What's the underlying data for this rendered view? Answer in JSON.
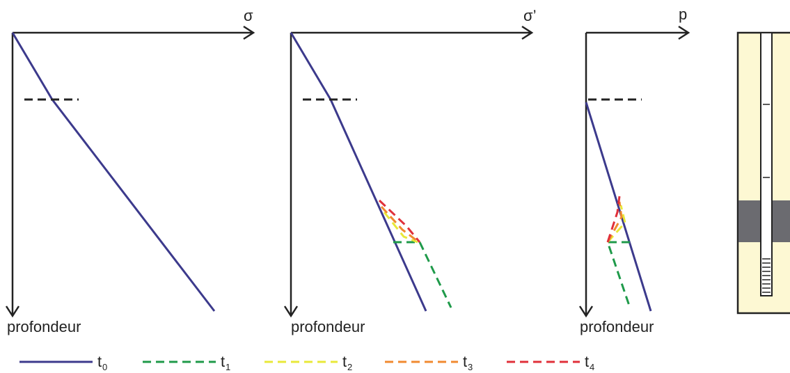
{
  "panels": [
    {
      "axis_label": "σ",
      "depth_label": "profondeur"
    },
    {
      "axis_label": "σ’",
      "depth_label": "profondeur"
    },
    {
      "axis_label": "p",
      "depth_label": "profondeur"
    }
  ],
  "legend": [
    {
      "name": "t",
      "sub": "0"
    },
    {
      "name": "t",
      "sub": "1"
    },
    {
      "name": "t",
      "sub": "2"
    },
    {
      "name": "t",
      "sub": "3"
    },
    {
      "name": "t",
      "sub": "4"
    }
  ]
}
